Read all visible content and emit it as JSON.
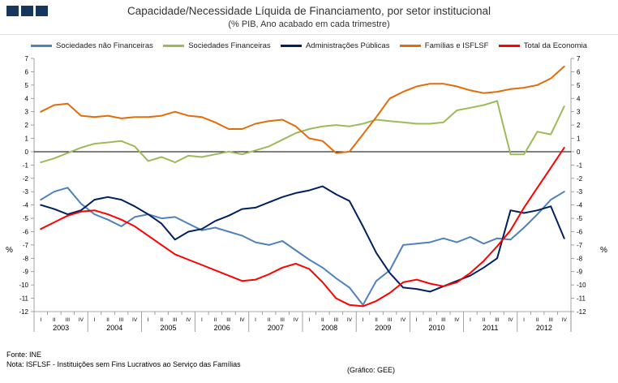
{
  "header": {
    "title": "Capacidade/Necessidade Líquida de Financiamento, por setor institucional",
    "subtitle": "(% PIB, Ano acabado em cada trimestre)"
  },
  "axis": {
    "y_left": "%",
    "y_right": "%"
  },
  "footer": {
    "fonte": "Fonte: INE",
    "nota": "Nota: ISFLSF - Instituições sem Fins Lucrativos ao Serviço das Famílias",
    "grafico": "(Gráfico: GEE)"
  },
  "chart_data": {
    "type": "line",
    "title": "Capacidade/Necessidade Líquida de Financiamento, por setor institucional",
    "subtitle": "(% PIB, Ano acabado em cada trimestre)",
    "ylim": [
      -12,
      7
    ],
    "ytick_step": 1,
    "grid": false,
    "zero_line": true,
    "legend_position": "top",
    "years": [
      "2003",
      "2004",
      "2005",
      "2006",
      "2007",
      "2008",
      "2009",
      "2010",
      "2011",
      "2012"
    ],
    "quarter_labels": [
      "I",
      "II",
      "III",
      "IV"
    ],
    "series": [
      {
        "name": "Sociedades não Financeiras",
        "color": "#4f81bd",
        "values": [
          -3.6,
          -3.0,
          -2.7,
          -3.9,
          -4.7,
          -5.1,
          -5.6,
          -4.9,
          -4.7,
          -5.0,
          -4.9,
          -5.4,
          -5.9,
          -5.7,
          -6.0,
          -6.3,
          -6.8,
          -7.0,
          -6.7,
          -7.4,
          -8.1,
          -8.7,
          -9.5,
          -10.2,
          -11.5,
          -9.7,
          -8.9,
          -7.0,
          -6.9,
          -6.8,
          -6.5,
          -6.8,
          -6.4,
          -6.9,
          -6.5,
          -6.6,
          -5.7,
          -4.7,
          -3.6,
          -3.0
        ]
      },
      {
        "name": "Sociedades Financeiras",
        "color": "#9bbb59",
        "values": [
          -0.8,
          -0.5,
          -0.1,
          0.3,
          0.6,
          0.7,
          0.8,
          0.4,
          -0.7,
          -0.4,
          -0.8,
          -0.3,
          -0.4,
          -0.2,
          0.0,
          -0.2,
          0.1,
          0.4,
          0.9,
          1.4,
          1.7,
          1.9,
          2.0,
          1.9,
          2.1,
          2.4,
          2.3,
          2.2,
          2.1,
          2.1,
          2.2,
          3.1,
          3.3,
          3.5,
          3.8,
          -0.2,
          -0.2,
          1.5,
          1.3,
          3.4
        ]
      },
      {
        "name": "Administrações Públicas",
        "color": "#002060",
        "values": [
          -4.0,
          -4.3,
          -4.7,
          -4.4,
          -3.6,
          -3.4,
          -3.6,
          -4.1,
          -4.7,
          -5.4,
          -6.6,
          -6.0,
          -5.8,
          -5.2,
          -4.8,
          -4.3,
          -4.2,
          -3.8,
          -3.4,
          -3.1,
          -2.9,
          -2.6,
          -3.2,
          -3.7,
          -5.6,
          -7.6,
          -9.1,
          -10.2,
          -10.3,
          -10.5,
          -10.1,
          -9.7,
          -9.3,
          -8.7,
          -8.0,
          -4.4,
          -4.6,
          -4.4,
          -4.1,
          -6.5
        ]
      },
      {
        "name": "Famílias e ISFLSF",
        "color": "#e36c0a",
        "values": [
          3.0,
          3.5,
          3.6,
          2.7,
          2.6,
          2.7,
          2.5,
          2.6,
          2.6,
          2.7,
          3.0,
          2.7,
          2.6,
          2.2,
          1.7,
          1.7,
          2.1,
          2.3,
          2.4,
          1.9,
          1.0,
          0.8,
          -0.1,
          0.0,
          1.3,
          2.6,
          4.0,
          4.5,
          4.9,
          5.1,
          5.1,
          4.9,
          4.6,
          4.4,
          4.5,
          4.7,
          4.8,
          5.0,
          5.5,
          6.4
        ]
      },
      {
        "name": "Total da Economia",
        "color": "#ff0000",
        "values": [
          -5.8,
          -5.3,
          -4.8,
          -4.5,
          -4.4,
          -4.7,
          -5.1,
          -5.6,
          -6.3,
          -7.0,
          -7.7,
          -8.1,
          -8.5,
          -8.9,
          -9.3,
          -9.7,
          -9.6,
          -9.2,
          -8.7,
          -8.4,
          -8.8,
          -9.8,
          -11.0,
          -11.5,
          -11.6,
          -11.2,
          -10.6,
          -9.8,
          -9.6,
          -9.9,
          -10.1,
          -9.8,
          -9.1,
          -8.2,
          -7.1,
          -5.9,
          -4.2,
          -2.7,
          -1.2,
          0.3
        ]
      }
    ]
  }
}
